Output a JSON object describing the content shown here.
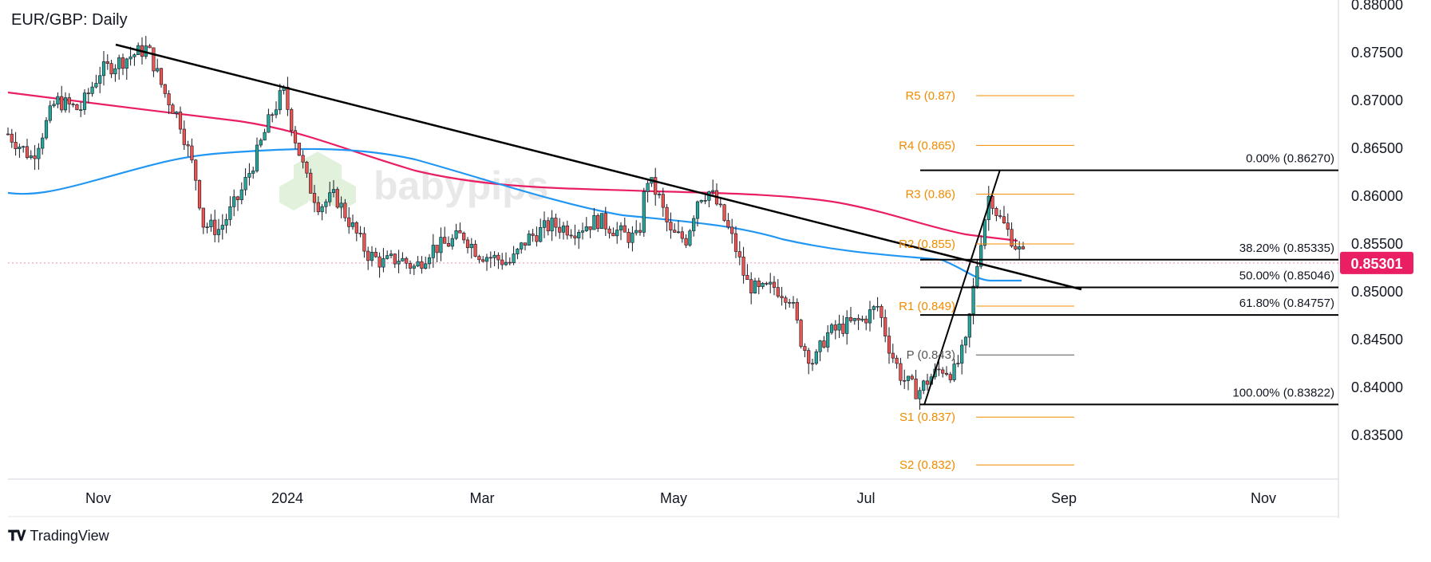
{
  "chart_data": {
    "type": "candlestick",
    "title": "EUR/GBP: Daily",
    "y_axis": {
      "position": "right",
      "ticks": [
        "0.88000",
        "0.87500",
        "0.87000",
        "0.86500",
        "0.86000",
        "0.85500",
        "0.85000",
        "0.84500",
        "0.84000",
        "0.83500"
      ],
      "ylim": [
        0.8307,
        0.8797
      ]
    },
    "x_axis": {
      "ticks": [
        "Nov",
        "2024",
        "Mar",
        "May",
        "Jul",
        "Sep",
        "Nov"
      ]
    },
    "current_price": {
      "label": "0.85301",
      "value": 0.85301,
      "color": "#e91e63"
    },
    "fibonacci": [
      {
        "label": "0.00% (0.86270)",
        "value": 0.8627
      },
      {
        "label": "38.20% (0.85335)",
        "value": 0.85335
      },
      {
        "label": "50.00% (0.85046)",
        "value": 0.85046
      },
      {
        "label": "61.80% (0.84757)",
        "value": 0.84757
      },
      {
        "label": "100.00% (0.83822)",
        "value": 0.83822
      }
    ],
    "pivots": [
      {
        "label": "R5 (0.87)",
        "value": 0.8705
      },
      {
        "label": "R4 (0.865)",
        "value": 0.8653
      },
      {
        "label": "R3 (0.86)",
        "value": 0.8602
      },
      {
        "label": "R2 (0.855)",
        "value": 0.855
      },
      {
        "label": "R1 (0.849)",
        "value": 0.8485
      },
      {
        "label": "P (0.843)",
        "value": 0.8434
      },
      {
        "label": "S1 (0.837)",
        "value": 0.8369
      },
      {
        "label": "S2 (0.832)",
        "value": 0.8319
      }
    ],
    "moving_averages": [
      {
        "color": "#e91e63"
      },
      {
        "color": "#2196f3"
      }
    ],
    "watermark": "babypips",
    "colors": {
      "up": "#26a69a",
      "down": "#ef5350",
      "candle": "#131722",
      "pivot": "#f08c00",
      "axis": "#131722"
    }
  },
  "footer": {
    "brand": "TradingView",
    "logo": "tv-logo-icon"
  }
}
